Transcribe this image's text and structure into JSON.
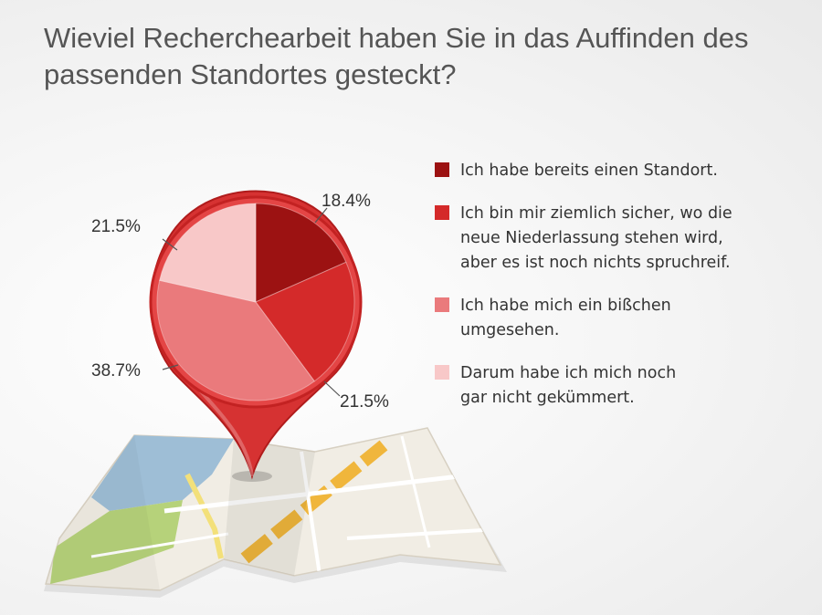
{
  "chart_data": {
    "type": "pie",
    "title": "Wieviel Recherchearbeit haben Sie in das Auffinden des passenden Standortes gesteckt?",
    "start_angle_deg": 0,
    "direction": "clockwise",
    "legend_position": "right",
    "slices": [
      {
        "label": "Ich habe bereits einen Standort.",
        "value": 18.4,
        "value_label": "18.4%",
        "color": "#9c1212"
      },
      {
        "label": "Ich bin mir ziemlich sicher, wo die\nneue Niederlassung stehen wird,\naber es ist noch nichts spruchreif.",
        "value": 21.5,
        "value_label": "21.5%",
        "color": "#d42a2a"
      },
      {
        "label": "Ich habe mich ein bißchen\numgesehen.",
        "value": 38.7,
        "value_label": "38.7%",
        "color": "#ea7a7c"
      },
      {
        "label": "Darum habe ich mich noch\ngar nicht gekümmert.",
        "value": 21.5,
        "value_label": "21.5%",
        "color": "#f8c8c8"
      }
    ]
  },
  "decoration": {
    "pin_color": "#d63232",
    "pin_dark": "#b01c1c",
    "map_base": "#f1ede4",
    "map_water": "#9ebed6",
    "map_green": "#b6d27a",
    "map_road": "#f0b63c"
  }
}
